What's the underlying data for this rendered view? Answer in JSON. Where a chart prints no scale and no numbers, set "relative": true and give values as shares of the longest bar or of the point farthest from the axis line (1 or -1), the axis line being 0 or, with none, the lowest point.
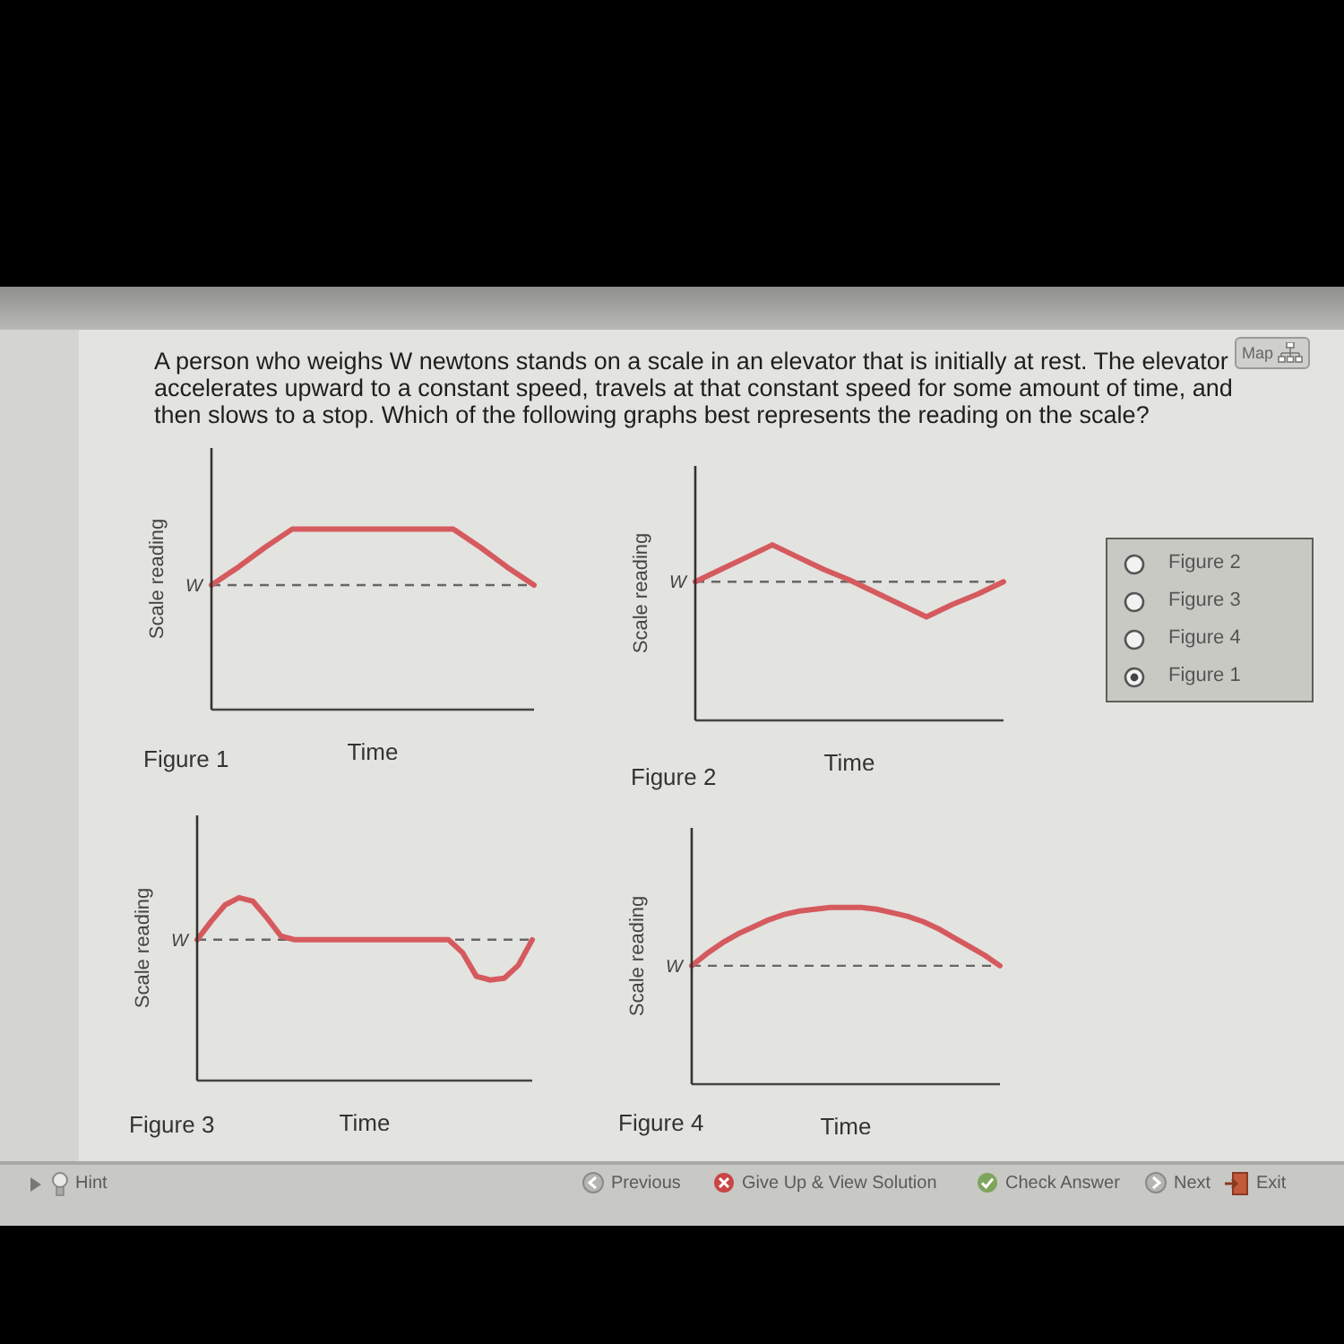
{
  "chart_data": [
    {
      "type": "other",
      "title": "A person who weighs W newtons stands on a scale in an elevator that is initially at rest. The elevator accelerates upward to a constant speed, travels at that constant speed for some amount of time, and then slows to a stop. Which of the following graphs best represents the reading on the scale?",
      "annotations": [
        "Map"
      ]
    },
    {
      "type": "line",
      "categories": [
        null,
        null,
        null,
        null,
        null,
        null,
        null,
        null,
        null,
        null,
        null,
        null,
        null
      ],
      "series": [
        {
          "color": "#d55a5e",
          "values": [
            0.69,
            0.79,
            0.9,
            1,
            1,
            1,
            1,
            1,
            1,
            1,
            0.9,
            0.79,
            0.69
          ]
        }
      ],
      "relative": true,
      "ref_lines": [
        {
          "axis": "y",
          "value": 0.69,
          "label": "W",
          "color": "#666666",
          "line_style": "dashed"
        }
      ],
      "xlabel": "Time",
      "ylabel": "Scale reading",
      "annotations": [
        "Figure 1"
      ]
    },
    {
      "type": "line",
      "categories": [
        null,
        null,
        null,
        null,
        null,
        null,
        null,
        null,
        null,
        null,
        null,
        null,
        null
      ],
      "series": [
        {
          "color": "#d55a5e",
          "values": [
            0.79,
            0.86,
            0.93,
            1,
            0.93,
            0.86,
            0.8,
            0.73,
            0.66,
            0.59,
            0.66,
            0.72,
            0.79
          ]
        }
      ],
      "relative": true,
      "ref_lines": [
        {
          "axis": "y",
          "value": 0.79,
          "label": "W",
          "color": "#666666",
          "line_style": "dashed"
        }
      ],
      "xlabel": "Time",
      "ylabel": "Scale reading",
      "annotations": [
        "Figure 2"
      ]
    },
    {
      "type": "other",
      "annotations": [
        "Figure 2",
        "Figure 3",
        "Figure 4",
        "Figure 1"
      ]
    },
    {
      "type": "line",
      "categories": [
        null,
        null,
        null,
        null,
        null,
        null,
        null,
        null,
        null,
        null,
        null,
        null,
        null,
        null,
        null,
        null,
        null,
        null,
        null,
        null,
        null,
        null,
        null,
        null,
        null
      ],
      "series": [
        {
          "color": "#d55a5e",
          "values": [
            0.77,
            0.87,
            0.96,
            1,
            0.98,
            0.89,
            0.79,
            0.77,
            0.77,
            0.77,
            0.77,
            0.77,
            0.77,
            0.77,
            0.77,
            0.77,
            0.77,
            0.77,
            0.77,
            0.7,
            0.57,
            0.55,
            0.56,
            0.63,
            0.77
          ]
        }
      ],
      "relative": true,
      "ref_lines": [
        {
          "axis": "y",
          "value": 0.77,
          "label": "W",
          "color": "#666666",
          "line_style": "dashed"
        }
      ],
      "xlabel": "Time",
      "ylabel": "Scale reading",
      "annotations": [
        "Figure 3"
      ]
    },
    {
      "type": "line",
      "categories": [
        null,
        null,
        null,
        null,
        null,
        null,
        null,
        null,
        null,
        null,
        null,
        null,
        null,
        null,
        null,
        null,
        null,
        null,
        null,
        null,
        null
      ],
      "series": [
        {
          "color": "#d55a5e",
          "values": [
            0.67,
            0.74,
            0.8,
            0.85,
            0.89,
            0.93,
            0.96,
            0.98,
            0.99,
            1,
            1,
            1,
            0.99,
            0.97,
            0.95,
            0.92,
            0.88,
            0.83,
            0.78,
            0.73,
            0.67
          ]
        }
      ],
      "relative": true,
      "ref_lines": [
        {
          "axis": "y",
          "value": 0.67,
          "label": "W",
          "color": "#666666",
          "line_style": "dashed"
        }
      ],
      "xlabel": "Time",
      "ylabel": "Scale reading",
      "annotations": [
        "Figure 4"
      ]
    },
    {
      "type": "other",
      "annotations": [
        "Hint",
        "Previous",
        "Give Up & View Solution",
        "Check Answer",
        "Next",
        "Exit"
      ]
    }
  ]
}
